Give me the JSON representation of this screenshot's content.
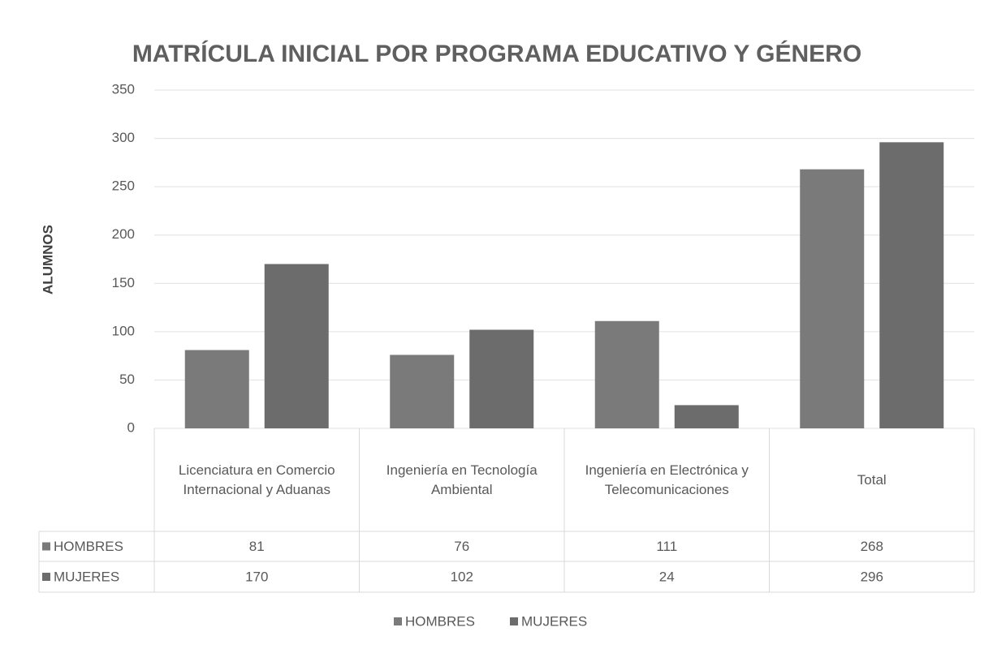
{
  "chart_data": {
    "type": "bar",
    "title": "MATRÍCULA INICIAL POR PROGRAMA EDUCATIVO Y GÉNERO",
    "y_label": "ALUMNOS",
    "categories": [
      "Licenciatura en Comercio Internacional y Aduanas",
      "Ingeniería en Tecnología Ambiental",
      "Ingeniería en Electrónica y Telecomunicaciones",
      "Total"
    ],
    "series": [
      {
        "name": "HOMBRES",
        "color": "#7a7a7a",
        "values": [
          81,
          76,
          111,
          268
        ]
      },
      {
        "name": "MUJERES",
        "color": "#6c6c6c",
        "values": [
          170,
          102,
          24,
          296
        ]
      }
    ],
    "ylim": [
      0,
      350
    ],
    "yticks": [
      0,
      50,
      100,
      150,
      200,
      250,
      300,
      350
    ],
    "grid": true,
    "legend": "bottom"
  }
}
